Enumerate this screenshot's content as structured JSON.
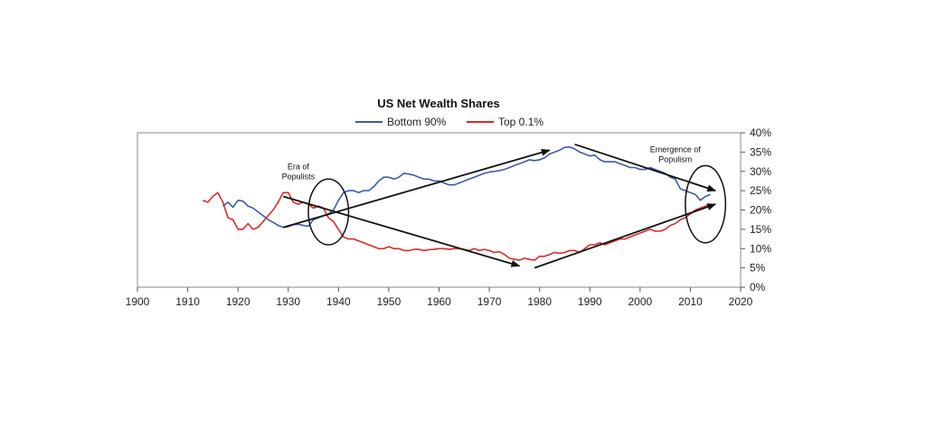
{
  "chart_data": {
    "type": "line",
    "title": "US Net Wealth Shares",
    "xlabel": "",
    "ylabel": "",
    "xlim": [
      1900,
      2020
    ],
    "ylim": [
      0,
      40
    ],
    "x_ticks": [
      "1900",
      "1910",
      "1920",
      "1930",
      "1940",
      "1950",
      "1960",
      "1970",
      "1980",
      "1990",
      "2000",
      "2010",
      "2020"
    ],
    "y_ticks": [
      "0%",
      "5%",
      "10%",
      "15%",
      "20%",
      "25%",
      "30%",
      "35%",
      "40%"
    ],
    "y_axis_side": "right",
    "grid": false,
    "legend_position": "top-center",
    "series": [
      {
        "name": "Bottom 90%",
        "color": "#3d5aa8",
        "points": [
          [
            1917,
            21
          ],
          [
            1918,
            22
          ],
          [
            1919,
            20.7
          ],
          [
            1920,
            22.5
          ],
          [
            1921,
            22.3
          ],
          [
            1922,
            21
          ],
          [
            1923,
            20.5
          ],
          [
            1924,
            19.5
          ],
          [
            1925,
            18.5
          ],
          [
            1926,
            17.5
          ],
          [
            1927,
            16.8
          ],
          [
            1928,
            16
          ],
          [
            1929,
            15.5
          ],
          [
            1930,
            15.7
          ],
          [
            1931,
            16.2
          ],
          [
            1932,
            16.3
          ],
          [
            1933,
            16
          ],
          [
            1934,
            15.8
          ],
          [
            1935,
            17.5
          ],
          [
            1936,
            18
          ],
          [
            1937,
            18.5
          ],
          [
            1938,
            19
          ],
          [
            1939,
            20
          ],
          [
            1940,
            22.5
          ],
          [
            1941,
            24.5
          ],
          [
            1942,
            25
          ],
          [
            1943,
            25
          ],
          [
            1944,
            24.5
          ],
          [
            1945,
            25
          ],
          [
            1946,
            25
          ],
          [
            1947,
            26
          ],
          [
            1948,
            27.5
          ],
          [
            1949,
            28.5
          ],
          [
            1950,
            28.5
          ],
          [
            1951,
            28
          ],
          [
            1952,
            28.5
          ],
          [
            1953,
            29.5
          ],
          [
            1954,
            29.3
          ],
          [
            1955,
            29
          ],
          [
            1956,
            28.5
          ],
          [
            1957,
            28
          ],
          [
            1958,
            28
          ],
          [
            1959,
            27.5
          ],
          [
            1960,
            27.5
          ],
          [
            1961,
            27
          ],
          [
            1962,
            26.5
          ],
          [
            1963,
            26.5
          ],
          [
            1964,
            27
          ],
          [
            1965,
            27.5
          ],
          [
            1966,
            28
          ],
          [
            1967,
            28.5
          ],
          [
            1968,
            29
          ],
          [
            1969,
            29.5
          ],
          [
            1970,
            29.8
          ],
          [
            1971,
            30
          ],
          [
            1972,
            30.2
          ],
          [
            1973,
            30.5
          ],
          [
            1974,
            31
          ],
          [
            1975,
            31.5
          ],
          [
            1976,
            32
          ],
          [
            1977,
            32.5
          ],
          [
            1978,
            33
          ],
          [
            1979,
            32.8
          ],
          [
            1980,
            33
          ],
          [
            1981,
            33.5
          ],
          [
            1982,
            34.5
          ],
          [
            1983,
            35
          ],
          [
            1984,
            35.5
          ],
          [
            1985,
            36.2
          ],
          [
            1986,
            36.3
          ],
          [
            1987,
            35.8
          ],
          [
            1988,
            35
          ],
          [
            1989,
            34.5
          ],
          [
            1990,
            34
          ],
          [
            1991,
            34.2
          ],
          [
            1992,
            33
          ],
          [
            1993,
            32.5
          ],
          [
            1994,
            32.5
          ],
          [
            1995,
            32.5
          ],
          [
            1996,
            32
          ],
          [
            1997,
            31.5
          ],
          [
            1998,
            31
          ],
          [
            1999,
            31
          ],
          [
            2000,
            30.5
          ],
          [
            2001,
            30.5
          ],
          [
            2002,
            31
          ],
          [
            2003,
            30.5
          ],
          [
            2004,
            30
          ],
          [
            2005,
            29.5
          ],
          [
            2006,
            28.5
          ],
          [
            2007,
            28
          ],
          [
            2008,
            25.5
          ],
          [
            2009,
            25
          ],
          [
            2010,
            24.5
          ],
          [
            2011,
            24
          ],
          [
            2012,
            22.5
          ],
          [
            2013,
            23.5
          ],
          [
            2014,
            24
          ]
        ]
      },
      {
        "name": "Top 0.1%",
        "color": "#d62a2a",
        "points": [
          [
            1913,
            22.5
          ],
          [
            1914,
            22
          ],
          [
            1915,
            23.5
          ],
          [
            1916,
            24.5
          ],
          [
            1917,
            22
          ],
          [
            1918,
            18
          ],
          [
            1919,
            17.5
          ],
          [
            1920,
            15
          ],
          [
            1921,
            15
          ],
          [
            1922,
            16.5
          ],
          [
            1923,
            15
          ],
          [
            1924,
            15.5
          ],
          [
            1925,
            17
          ],
          [
            1926,
            18.5
          ],
          [
            1927,
            20
          ],
          [
            1928,
            22
          ],
          [
            1929,
            24.5
          ],
          [
            1930,
            24.5
          ],
          [
            1931,
            22
          ],
          [
            1932,
            21.5
          ],
          [
            1933,
            22
          ],
          [
            1934,
            21.5
          ],
          [
            1935,
            20.5
          ],
          [
            1936,
            21
          ],
          [
            1937,
            20.5
          ],
          [
            1938,
            18
          ],
          [
            1939,
            17
          ],
          [
            1940,
            15
          ],
          [
            1941,
            13
          ],
          [
            1942,
            12.5
          ],
          [
            1943,
            12.5
          ],
          [
            1944,
            12
          ],
          [
            1945,
            11.5
          ],
          [
            1946,
            11
          ],
          [
            1947,
            10.5
          ],
          [
            1948,
            10
          ],
          [
            1949,
            10
          ],
          [
            1950,
            10.5
          ],
          [
            1951,
            10
          ],
          [
            1952,
            10
          ],
          [
            1953,
            9.5
          ],
          [
            1954,
            9.5
          ],
          [
            1955,
            9.8
          ],
          [
            1956,
            9.8
          ],
          [
            1957,
            9.5
          ],
          [
            1958,
            9.7
          ],
          [
            1959,
            9.8
          ],
          [
            1960,
            10
          ],
          [
            1961,
            10
          ],
          [
            1962,
            9.8
          ],
          [
            1963,
            10
          ],
          [
            1964,
            10
          ],
          [
            1965,
            9.8
          ],
          [
            1966,
            9.5
          ],
          [
            1967,
            10
          ],
          [
            1968,
            9.5
          ],
          [
            1969,
            9.8
          ],
          [
            1970,
            9.5
          ],
          [
            1971,
            9
          ],
          [
            1972,
            9.2
          ],
          [
            1973,
            8.5
          ],
          [
            1974,
            7.5
          ],
          [
            1975,
            7.2
          ],
          [
            1976,
            7
          ],
          [
            1977,
            7.5
          ],
          [
            1978,
            7.2
          ],
          [
            1979,
            7
          ],
          [
            1980,
            8
          ],
          [
            1981,
            8
          ],
          [
            1982,
            8.5
          ],
          [
            1983,
            9
          ],
          [
            1984,
            8.8
          ],
          [
            1985,
            9
          ],
          [
            1986,
            9.5
          ],
          [
            1987,
            9.5
          ],
          [
            1988,
            9
          ],
          [
            1989,
            10
          ],
          [
            1990,
            11
          ],
          [
            1991,
            11
          ],
          [
            1992,
            11.5
          ],
          [
            1993,
            11
          ],
          [
            1994,
            11.5
          ],
          [
            1995,
            12
          ],
          [
            1996,
            12.5
          ],
          [
            1997,
            12.5
          ],
          [
            1998,
            13
          ],
          [
            1999,
            13.5
          ],
          [
            2000,
            14
          ],
          [
            2001,
            14.5
          ],
          [
            2002,
            15
          ],
          [
            2003,
            14.5
          ],
          [
            2004,
            14.5
          ],
          [
            2005,
            15
          ],
          [
            2006,
            16
          ],
          [
            2007,
            16.5
          ],
          [
            2008,
            17.5
          ],
          [
            2009,
            18
          ],
          [
            2010,
            19
          ],
          [
            2011,
            20
          ],
          [
            2012,
            20.5
          ],
          [
            2013,
            21
          ],
          [
            2014,
            21.5
          ]
        ]
      }
    ],
    "annotations": [
      {
        "text": [
          "Era of",
          "Populists"
        ],
        "at": [
          1932,
          30.5
        ]
      },
      {
        "text": [
          "Emergence of",
          "Populism"
        ],
        "at": [
          2007,
          35
        ]
      }
    ],
    "ellipses": [
      {
        "center": [
          1938,
          19.5
        ],
        "radius_years": 4,
        "radius_pct": 8.5
      },
      {
        "center": [
          2013,
          21.5
        ],
        "radius_years": 4,
        "radius_pct": 10
      }
    ],
    "arrows": [
      {
        "from": [
          1929,
          15.5
        ],
        "to": [
          1982,
          35.5
        ]
      },
      {
        "from": [
          1929,
          23.5
        ],
        "to": [
          1976,
          5.5
        ]
      },
      {
        "from": [
          1987,
          37
        ],
        "to": [
          2015,
          25
        ]
      },
      {
        "from": [
          1979,
          5
        ],
        "to": [
          2015,
          21.5
        ]
      }
    ]
  }
}
